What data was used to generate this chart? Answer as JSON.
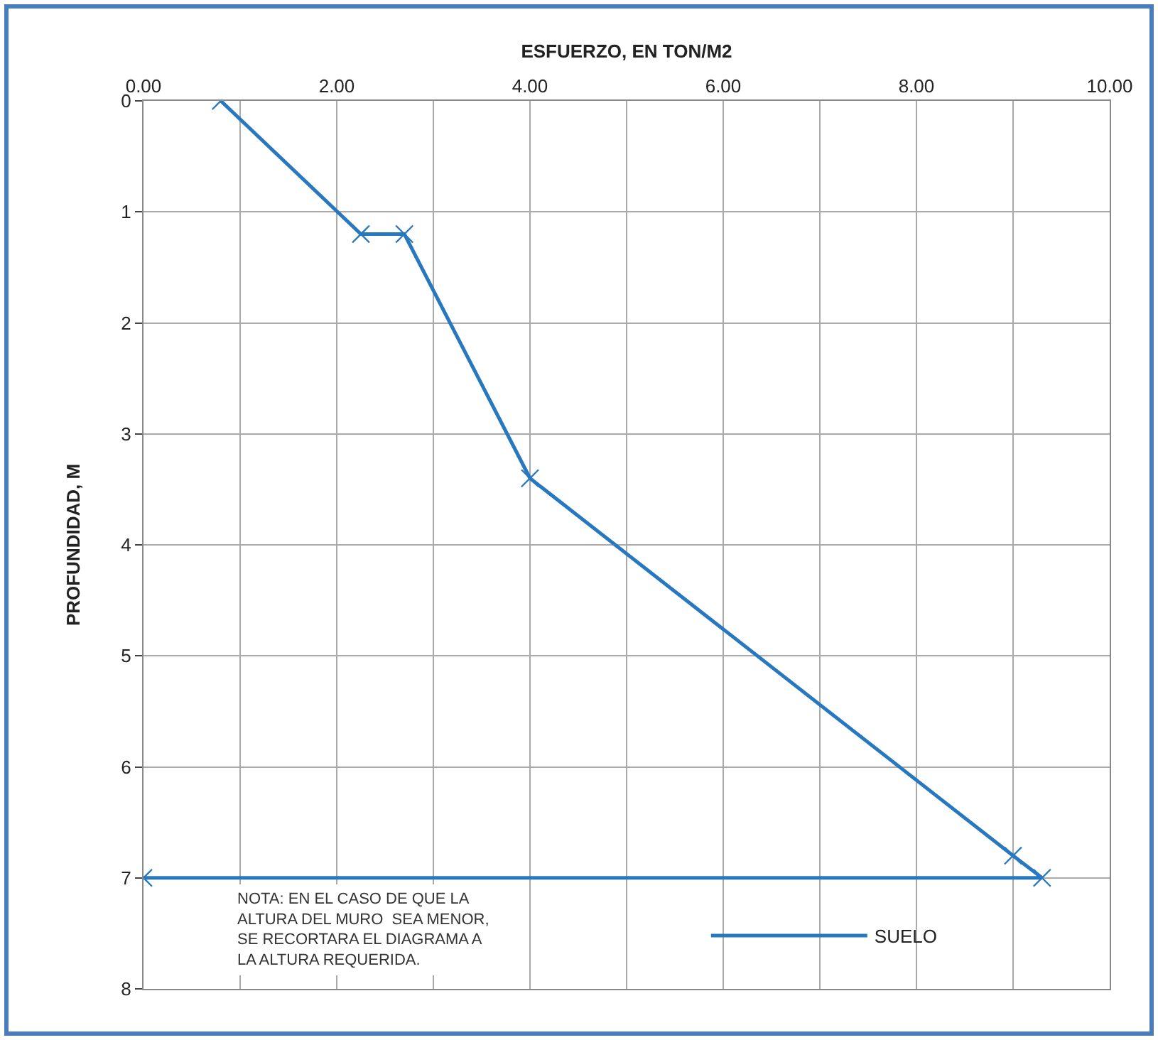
{
  "chart_data": {
    "type": "line",
    "xlabel": "ESFUERZO, EN TON/M2",
    "ylabel": "PROFUNDIDAD, M",
    "x": [
      0.8,
      2.25,
      2.7,
      4.0,
      9.0,
      9.3,
      0
    ],
    "series": [
      {
        "name": "SUELO",
        "color": "#2878c0",
        "values": [
          0,
          1.2,
          1.2,
          3.4,
          6.8,
          7.0,
          7.0
        ]
      }
    ],
    "xlim": [
      0,
      10
    ],
    "xticks": [
      {
        "value": 0,
        "label": "0.00"
      },
      {
        "value": 1,
        "label": null
      },
      {
        "value": 2,
        "label": "2.00"
      },
      {
        "value": 3,
        "label": null
      },
      {
        "value": 4,
        "label": "4.00"
      },
      {
        "value": 5,
        "label": null
      },
      {
        "value": 6,
        "label": "6.00"
      },
      {
        "value": 7,
        "label": null
      },
      {
        "value": 8,
        "label": "8.00"
      },
      {
        "value": 9,
        "label": null
      },
      {
        "value": 10,
        "label": "10.00"
      }
    ],
    "ylim": [
      8,
      0
    ],
    "yticks": [
      0,
      1,
      2,
      3,
      4,
      5,
      6,
      7,
      8
    ],
    "grid": true,
    "legend": "bottom",
    "marker": "cross",
    "line_style": "solid",
    "annotations": [
      "NOTA: EN EL CASO DE QUE LA\nALTURA DEL MURO  SEA MENOR,\nSE RECORTARA EL DIAGRAMA A\nLA ALTURA REQUERIDA."
    ]
  }
}
